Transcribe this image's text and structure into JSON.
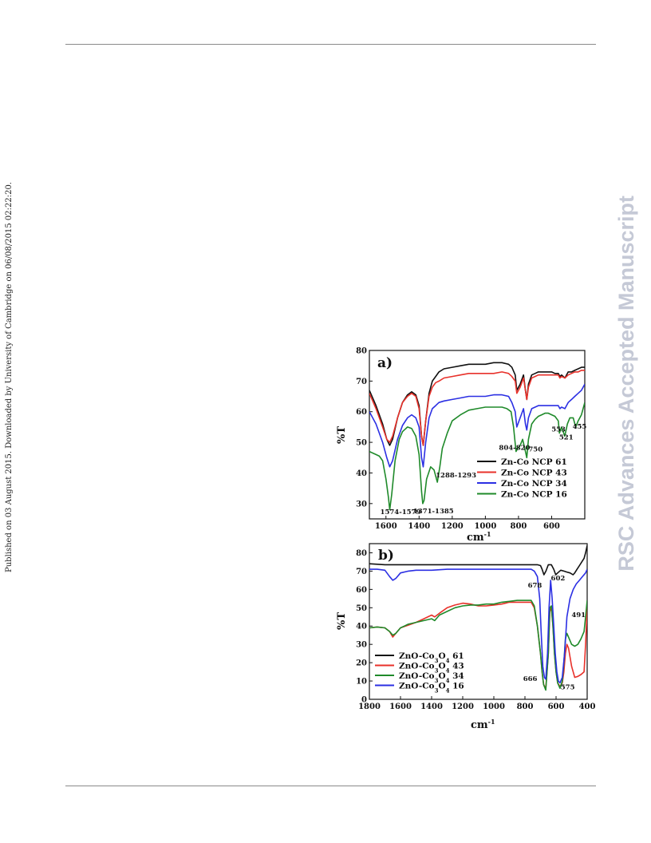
{
  "side_note": "Published on 03 August 2015. Downloaded by University of Cambridge on 06/08/2015 02:22:20.",
  "watermark": "RSC Advances Accepted Manuscript",
  "chart_data": [
    {
      "type": "line",
      "panel_label": "a)",
      "xlabel": "cm",
      "xlabel_sup": "-1",
      "ylabel": "%T",
      "xlim": [
        1700,
        400
      ],
      "ylim": [
        25,
        80
      ],
      "x_ticks": [
        1600,
        1400,
        1200,
        1000,
        800,
        600
      ],
      "y_ticks": [
        30,
        40,
        50,
        60,
        70,
        80
      ],
      "legend_position": "bottom-right",
      "annotations": [
        {
          "text": "1574-1579",
          "x": 1577,
          "y": 26.5
        },
        {
          "text": "1371-1385",
          "x": 1378,
          "y": 26.8
        },
        {
          "text": "1288-1293",
          "x": 1290,
          "y": 38.5
        },
        {
          "text": "804-820",
          "x": 812,
          "y": 47.5
        },
        {
          "text": "750",
          "x": 740,
          "y": 47
        },
        {
          "text": "553",
          "x": 553,
          "y": 53.5
        },
        {
          "text": "521",
          "x": 521,
          "y": 51
        },
        {
          "text": "455",
          "x": 455,
          "y": 54.5
        }
      ],
      "series": [
        {
          "name": "Zn-Co NCP 61",
          "color": "#111111",
          "x": [
            1700,
            1660,
            1620,
            1595,
            1577,
            1560,
            1530,
            1500,
            1470,
            1445,
            1420,
            1400,
            1385,
            1375,
            1360,
            1340,
            1320,
            1300,
            1280,
            1250,
            1200,
            1150,
            1100,
            1050,
            1000,
            950,
            900,
            860,
            840,
            820,
            810,
            790,
            770,
            758,
            750,
            740,
            720,
            700,
            680,
            650,
            620,
            600,
            580,
            560,
            550,
            540,
            520,
            500,
            480,
            460,
            440,
            420,
            400
          ],
          "y": [
            67,
            62,
            56,
            51,
            49,
            51,
            58,
            63,
            65.5,
            66.5,
            65.5,
            62,
            52,
            49,
            57,
            66,
            70,
            71.5,
            73,
            74,
            74.5,
            75,
            75.5,
            75.5,
            75.5,
            76,
            76,
            75.5,
            74.5,
            72,
            67,
            69,
            72,
            67,
            64,
            69,
            72,
            72.5,
            73,
            73,
            73,
            73,
            72.5,
            72.5,
            71.5,
            72,
            71,
            73,
            73,
            73.5,
            74,
            74.5,
            74.5
          ]
        },
        {
          "name": "Zn-Co NCP 43",
          "color": "#e8312a",
          "x": [
            1700,
            1660,
            1620,
            1595,
            1577,
            1560,
            1530,
            1500,
            1470,
            1445,
            1420,
            1400,
            1385,
            1375,
            1360,
            1340,
            1320,
            1300,
            1280,
            1250,
            1200,
            1150,
            1100,
            1050,
            1000,
            950,
            900,
            860,
            840,
            820,
            810,
            790,
            770,
            758,
            750,
            740,
            720,
            700,
            680,
            650,
            620,
            600,
            580,
            560,
            550,
            540,
            520,
            500,
            480,
            460,
            440,
            420,
            400
          ],
          "y": [
            66,
            61,
            55,
            51,
            50,
            52,
            58,
            63,
            65,
            66,
            65,
            61,
            52,
            49,
            57,
            65,
            68,
            69.5,
            70,
            71,
            71.5,
            72,
            72.5,
            72.5,
            72.5,
            72.5,
            73,
            72.5,
            71.5,
            70,
            66,
            68,
            71,
            67,
            64,
            68,
            71,
            71.5,
            72,
            72,
            72,
            72,
            72,
            72,
            71,
            71.5,
            71,
            72,
            72.5,
            73,
            73,
            73.5,
            73.5
          ]
        },
        {
          "name": "Zn-Co NCP 34",
          "color": "#2b2fe3",
          "x": [
            1700,
            1660,
            1620,
            1595,
            1577,
            1560,
            1530,
            1500,
            1470,
            1445,
            1420,
            1400,
            1385,
            1375,
            1360,
            1340,
            1320,
            1300,
            1280,
            1250,
            1200,
            1150,
            1100,
            1050,
            1000,
            950,
            900,
            860,
            840,
            820,
            810,
            790,
            770,
            758,
            750,
            740,
            720,
            700,
            680,
            650,
            620,
            600,
            580,
            560,
            550,
            540,
            520,
            500,
            480,
            460,
            440,
            420,
            400
          ],
          "y": [
            60,
            56,
            50,
            45,
            42,
            44,
            51,
            55.5,
            58,
            59,
            58,
            55,
            45,
            42,
            50,
            58,
            61,
            62,
            63,
            63.5,
            64,
            64.5,
            65,
            65,
            65,
            65.5,
            65.5,
            65,
            63,
            60,
            55,
            58,
            61,
            56,
            54,
            58,
            61,
            61.5,
            62,
            62,
            62,
            62,
            62,
            62,
            61,
            61.5,
            61,
            63,
            64,
            65,
            66,
            67,
            69
          ]
        },
        {
          "name": "Zn-Co NCP 16",
          "color": "#1f8a2a",
          "x": [
            1700,
            1660,
            1640,
            1620,
            1600,
            1585,
            1577,
            1565,
            1545,
            1520,
            1500,
            1470,
            1445,
            1420,
            1400,
            1385,
            1378,
            1370,
            1355,
            1330,
            1310,
            1290,
            1275,
            1260,
            1230,
            1200,
            1150,
            1100,
            1050,
            1000,
            950,
            900,
            870,
            845,
            830,
            815,
            805,
            790,
            775,
            762,
            750,
            740,
            720,
            700,
            680,
            660,
            640,
            620,
            600,
            580,
            560,
            553,
            540,
            521,
            505,
            490,
            470,
            455,
            440,
            420,
            400
          ],
          "y": [
            47,
            46,
            45.5,
            44,
            38,
            32,
            28,
            33,
            44,
            51,
            53.5,
            55,
            54.5,
            52,
            46,
            34,
            30,
            31,
            38,
            42,
            41,
            37,
            42,
            48,
            53,
            57,
            59,
            60.5,
            61,
            61.5,
            61.5,
            61.5,
            61,
            60,
            55,
            47,
            48,
            49,
            51,
            48,
            45,
            51,
            56,
            57.5,
            58.5,
            59,
            59.5,
            59.5,
            59,
            58.5,
            57,
            53,
            55,
            52,
            56,
            58,
            58,
            55,
            57,
            59,
            63
          ]
        }
      ]
    },
    {
      "type": "line",
      "panel_label": "b)",
      "xlabel": "cm",
      "xlabel_sup": "-1",
      "ylabel": "%T",
      "xlim": [
        1800,
        400
      ],
      "ylim": [
        0,
        85
      ],
      "x_ticks": [
        1800,
        1600,
        1400,
        1200,
        1000,
        800,
        600,
        400
      ],
      "y_ticks": [
        0,
        10,
        20,
        30,
        40,
        50,
        60,
        70,
        80
      ],
      "legend_position": "bottom-left",
      "annotations": [
        {
          "text": "678",
          "x": 720,
          "y": 61
        },
        {
          "text": "602",
          "x": 592,
          "y": 65
        },
        {
          "text": "491",
          "x": 470,
          "y": 45
        },
        {
          "text": "666",
          "x": 740,
          "y": 10
        },
        {
          "text": "575",
          "x": 550,
          "y": 5.5
        }
      ],
      "series": [
        {
          "name": "ZnO-Co",
          "name_parts": [
            "ZnO-Co",
            "3",
            "O",
            "4",
            " 61"
          ],
          "color": "#111111",
          "x": [
            1800,
            1700,
            1600,
            1500,
            1400,
            1300,
            1200,
            1100,
            1000,
            900,
            800,
            750,
            720,
            700,
            690,
            678,
            665,
            650,
            630,
            615,
            602,
            590,
            570,
            550,
            530,
            510,
            491,
            480,
            465,
            450,
            435,
            420,
            410,
            400
          ],
          "y": [
            74,
            73.5,
            73.5,
            73.5,
            73.5,
            73.5,
            73.5,
            73.5,
            73.5,
            73.5,
            73.5,
            73.5,
            73.5,
            73,
            71,
            68,
            70,
            73.5,
            73.5,
            71,
            68,
            69,
            70.5,
            70,
            69.5,
            69,
            68,
            69,
            71,
            73,
            75,
            77,
            80,
            84
          ]
        },
        {
          "name": "ZnO-Co",
          "name_parts": [
            "ZnO-Co",
            "3",
            "O",
            "4",
            " 43"
          ],
          "color": "#e8312a",
          "x": [
            1800,
            1750,
            1700,
            1670,
            1650,
            1630,
            1600,
            1550,
            1500,
            1450,
            1400,
            1380,
            1350,
            1300,
            1250,
            1200,
            1150,
            1100,
            1050,
            1000,
            950,
            900,
            850,
            800,
            760,
            740,
            720,
            700,
            690,
            680,
            666,
            650,
            640,
            630,
            620,
            610,
            600,
            590,
            575,
            560,
            550,
            540,
            530,
            520,
            500,
            480,
            460,
            440,
            420,
            410,
            400
          ],
          "y": [
            39,
            39.5,
            39,
            37,
            34,
            36,
            39,
            40.5,
            42,
            44,
            46,
            45,
            47,
            50,
            51.5,
            52.5,
            52,
            51,
            51,
            51.5,
            52,
            53,
            53,
            53,
            53,
            50,
            40,
            25,
            15,
            8,
            6,
            25,
            48,
            50,
            40,
            25,
            15,
            9,
            7,
            9,
            15,
            25,
            30,
            28,
            18,
            12,
            12.5,
            13.5,
            15,
            30,
            50
          ]
        },
        {
          "name": "ZnO-Co",
          "name_parts": [
            "ZnO-Co",
            "3",
            "O",
            "4",
            " 34"
          ],
          "color": "#1f8a2a",
          "x": [
            1800,
            1750,
            1700,
            1670,
            1650,
            1630,
            1600,
            1550,
            1500,
            1450,
            1400,
            1380,
            1350,
            1300,
            1250,
            1200,
            1150,
            1100,
            1050,
            1000,
            950,
            900,
            850,
            800,
            760,
            740,
            720,
            700,
            690,
            680,
            666,
            650,
            640,
            630,
            620,
            610,
            600,
            590,
            575,
            560,
            550,
            540,
            530,
            520,
            500,
            480,
            460,
            440,
            420,
            410,
            400
          ],
          "y": [
            39,
            39.5,
            39,
            37,
            35,
            36,
            39,
            41,
            42,
            43,
            44,
            43,
            46,
            48,
            50,
            51,
            51.5,
            51.5,
            52,
            52,
            53,
            53.5,
            54,
            54,
            54,
            51,
            40,
            25,
            15,
            8,
            5,
            25,
            50,
            51,
            40,
            25,
            15,
            9,
            6,
            10,
            20,
            33,
            36,
            34,
            30,
            29,
            30,
            33,
            37,
            45,
            54
          ]
        },
        {
          "name": "ZnO-Co",
          "name_parts": [
            "ZnO-Co",
            "3",
            "O",
            "4",
            " 16"
          ],
          "color": "#2b2fe3",
          "x": [
            1800,
            1750,
            1700,
            1670,
            1650,
            1630,
            1600,
            1550,
            1500,
            1400,
            1300,
            1200,
            1100,
            1000,
            900,
            800,
            760,
            740,
            720,
            705,
            695,
            685,
            675,
            666,
            655,
            645,
            635,
            625,
            615,
            605,
            595,
            585,
            575,
            560,
            545,
            530,
            510,
            490,
            470,
            450,
            430,
            410,
            400
          ],
          "y": [
            71,
            71,
            70.5,
            67,
            65,
            66,
            69,
            70,
            70.5,
            70.5,
            71,
            71,
            71,
            71,
            71,
            71,
            71,
            70,
            67,
            55,
            35,
            18,
            12,
            11,
            25,
            50,
            65,
            55,
            40,
            25,
            15,
            10,
            9,
            12,
            25,
            45,
            55,
            60,
            63,
            65,
            67,
            69,
            71
          ]
        }
      ]
    }
  ]
}
